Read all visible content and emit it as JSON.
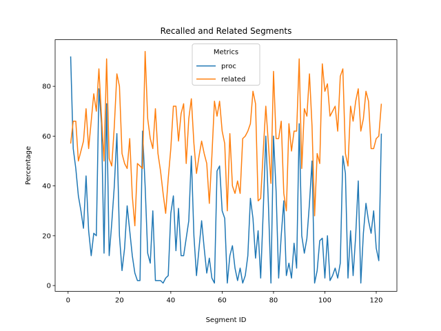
{
  "chart_data": {
    "type": "line",
    "title": "Recalled and Related Segments",
    "xlabel": "Segment ID",
    "ylabel": "Percentage",
    "legend_title": "Metrics",
    "legend_loc": "upper center",
    "x": [
      1,
      2,
      3,
      4,
      5,
      6,
      7,
      8,
      9,
      10,
      11,
      12,
      13,
      14,
      15,
      16,
      17,
      18,
      19,
      20,
      21,
      22,
      23,
      24,
      25,
      26,
      27,
      28,
      29,
      30,
      31,
      32,
      33,
      34,
      35,
      36,
      37,
      38,
      39,
      40,
      41,
      42,
      43,
      44,
      45,
      46,
      47,
      48,
      49,
      50,
      51,
      52,
      53,
      54,
      55,
      56,
      57,
      58,
      59,
      60,
      61,
      62,
      63,
      64,
      65,
      66,
      67,
      68,
      69,
      70,
      71,
      72,
      73,
      74,
      75,
      76,
      77,
      78,
      79,
      80,
      81,
      82,
      83,
      84,
      85,
      86,
      87,
      88,
      89,
      90,
      91,
      92,
      93,
      94,
      95,
      96,
      97,
      98,
      99,
      100,
      101,
      102,
      103,
      104,
      105,
      106,
      107,
      108,
      109,
      110,
      111,
      112,
      113,
      114,
      115,
      116,
      117,
      118,
      119,
      120,
      121,
      122
    ],
    "series": [
      {
        "name": "proc",
        "color": "#1f77b4",
        "values": [
          92,
          55,
          47,
          36,
          30,
          23,
          44,
          22,
          12,
          21,
          20,
          79,
          65,
          13,
          73,
          12,
          25,
          40,
          61,
          20,
          6,
          15,
          32,
          22,
          12,
          5,
          2,
          2,
          62,
          40,
          13,
          9,
          30,
          2,
          2,
          2,
          1,
          3,
          4,
          29,
          36,
          14,
          31,
          12,
          12,
          19,
          26,
          52,
          20,
          4,
          15,
          26,
          15,
          5,
          11,
          3,
          1,
          46,
          48,
          30,
          27,
          1,
          12,
          16,
          7,
          2,
          7,
          1,
          4,
          12,
          35,
          27,
          11,
          22,
          3,
          30,
          60,
          33,
          1,
          60,
          38,
          3,
          20,
          34,
          4,
          9,
          3,
          17,
          7,
          65,
          20,
          13,
          19,
          33,
          50,
          1,
          6,
          18,
          19,
          3,
          20,
          2,
          4,
          7,
          3,
          9,
          52,
          45,
          3,
          22,
          4,
          20,
          42,
          1,
          21,
          33,
          26,
          21,
          30,
          15,
          10,
          61
        ]
      },
      {
        "name": "related",
        "color": "#ff7f0e",
        "values": [
          57,
          66,
          66,
          50,
          54,
          58,
          71,
          55,
          66,
          77,
          70,
          87,
          68,
          50,
          91,
          51,
          48,
          64,
          85,
          80,
          53,
          49,
          47,
          59,
          36,
          24,
          49,
          48,
          47,
          94,
          67,
          59,
          55,
          71,
          53,
          46,
          37,
          29,
          43,
          55,
          72,
          72,
          58,
          69,
          73,
          49,
          67,
          75,
          57,
          45,
          52,
          58,
          53,
          49,
          33,
          52,
          74,
          68,
          74,
          62,
          57,
          30,
          61,
          40,
          37,
          42,
          37,
          59,
          60,
          62,
          65,
          78,
          73,
          34,
          35,
          54,
          72,
          57,
          41,
          86,
          59,
          59,
          66,
          37,
          30,
          65,
          54,
          62,
          62,
          91,
          47,
          71,
          68,
          85,
          64,
          28,
          53,
          49,
          89,
          78,
          81,
          68,
          70,
          72,
          62,
          84,
          87,
          53,
          48,
          72,
          66,
          74,
          79,
          62,
          67,
          78,
          74,
          55,
          55,
          59,
          60,
          73
        ]
      }
    ],
    "xlim": [
      -5.05,
      128.05
    ],
    "ylim": [
      -2.3,
      98.7
    ],
    "xticks": [
      0,
      20,
      40,
      60,
      80,
      100,
      120
    ],
    "yticks": [
      0,
      20,
      40,
      60,
      80
    ]
  }
}
